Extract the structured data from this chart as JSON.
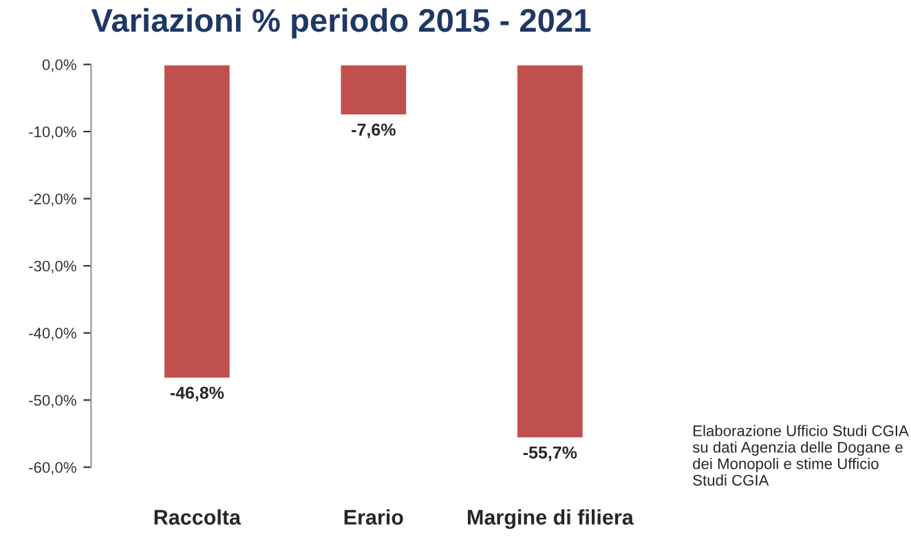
{
  "chart_data": {
    "type": "bar",
    "title": "Variazioni % periodo 2015 - 2021",
    "categories": [
      "Raccolta",
      "Erario",
      "Margine di filiera"
    ],
    "values": [
      -46.8,
      -7.6,
      -55.7
    ],
    "value_labels": [
      "-46,8%",
      "-7,6%",
      "-55,7%"
    ],
    "color": "#c0504d",
    "ylim": [
      -60,
      0
    ],
    "yticks": [
      {
        "value": 0,
        "label": "0,0%"
      },
      {
        "value": -10,
        "label": "-10,0%"
      },
      {
        "value": -20,
        "label": "-20,0%"
      },
      {
        "value": -30,
        "label": "-30,0%"
      },
      {
        "value": -40,
        "label": "-40,0%"
      },
      {
        "value": -50,
        "label": "-50,0%"
      },
      {
        "value": -60,
        "label": "-60,0%"
      }
    ],
    "grid": false,
    "annotations": [
      "Elaborazione Ufficio Studi CGIA su dati Agenzia delle Dogane e dei Monopoli e stime Ufficio Studi CGIA"
    ]
  }
}
